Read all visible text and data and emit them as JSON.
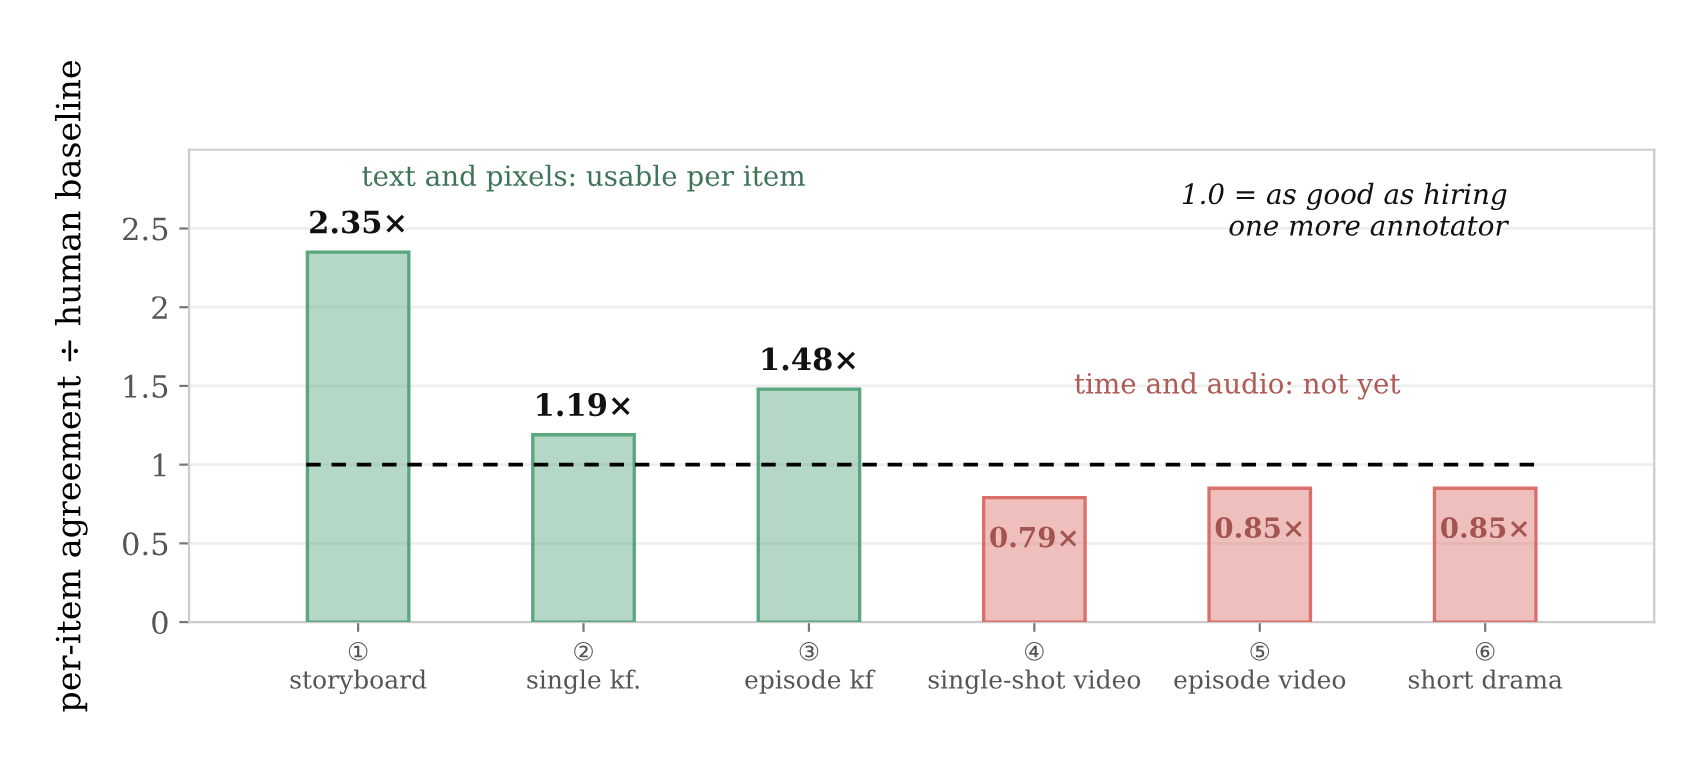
{
  "chart_data": {
    "type": "bar",
    "ylabel": "per-item agreement ÷ human baseline",
    "categories": [
      "①\nstoryboard",
      "②\nsingle kf.",
      "③\nepisode kf",
      "④\nsingle-shot video",
      "⑤\nepisode video",
      "⑥\nshort drama"
    ],
    "values": [
      2.35,
      1.19,
      1.48,
      0.79,
      0.85,
      0.85
    ],
    "value_labels": [
      "2.35×",
      "1.19×",
      "1.48×",
      "0.79×",
      "0.85×",
      "0.85×"
    ],
    "colors": [
      "#5aa67e",
      "#5aa67e",
      "#5aa67e",
      "#d9706a",
      "#d9706a",
      "#d9706a"
    ],
    "ylim": [
      0,
      3.0
    ],
    "yticks": [
      0,
      0.5,
      1,
      1.5,
      2,
      2.5
    ],
    "ref_lines": [
      {
        "axis": "y",
        "value": 1.0,
        "label": null,
        "color": "#000000",
        "line_style": "dashed"
      }
    ],
    "annotations": [
      "text and pixels: usable per item",
      "time and audio: not yet",
      "1.0 = as good as hiring\none more annotator"
    ],
    "grid": "y",
    "legend": false
  }
}
